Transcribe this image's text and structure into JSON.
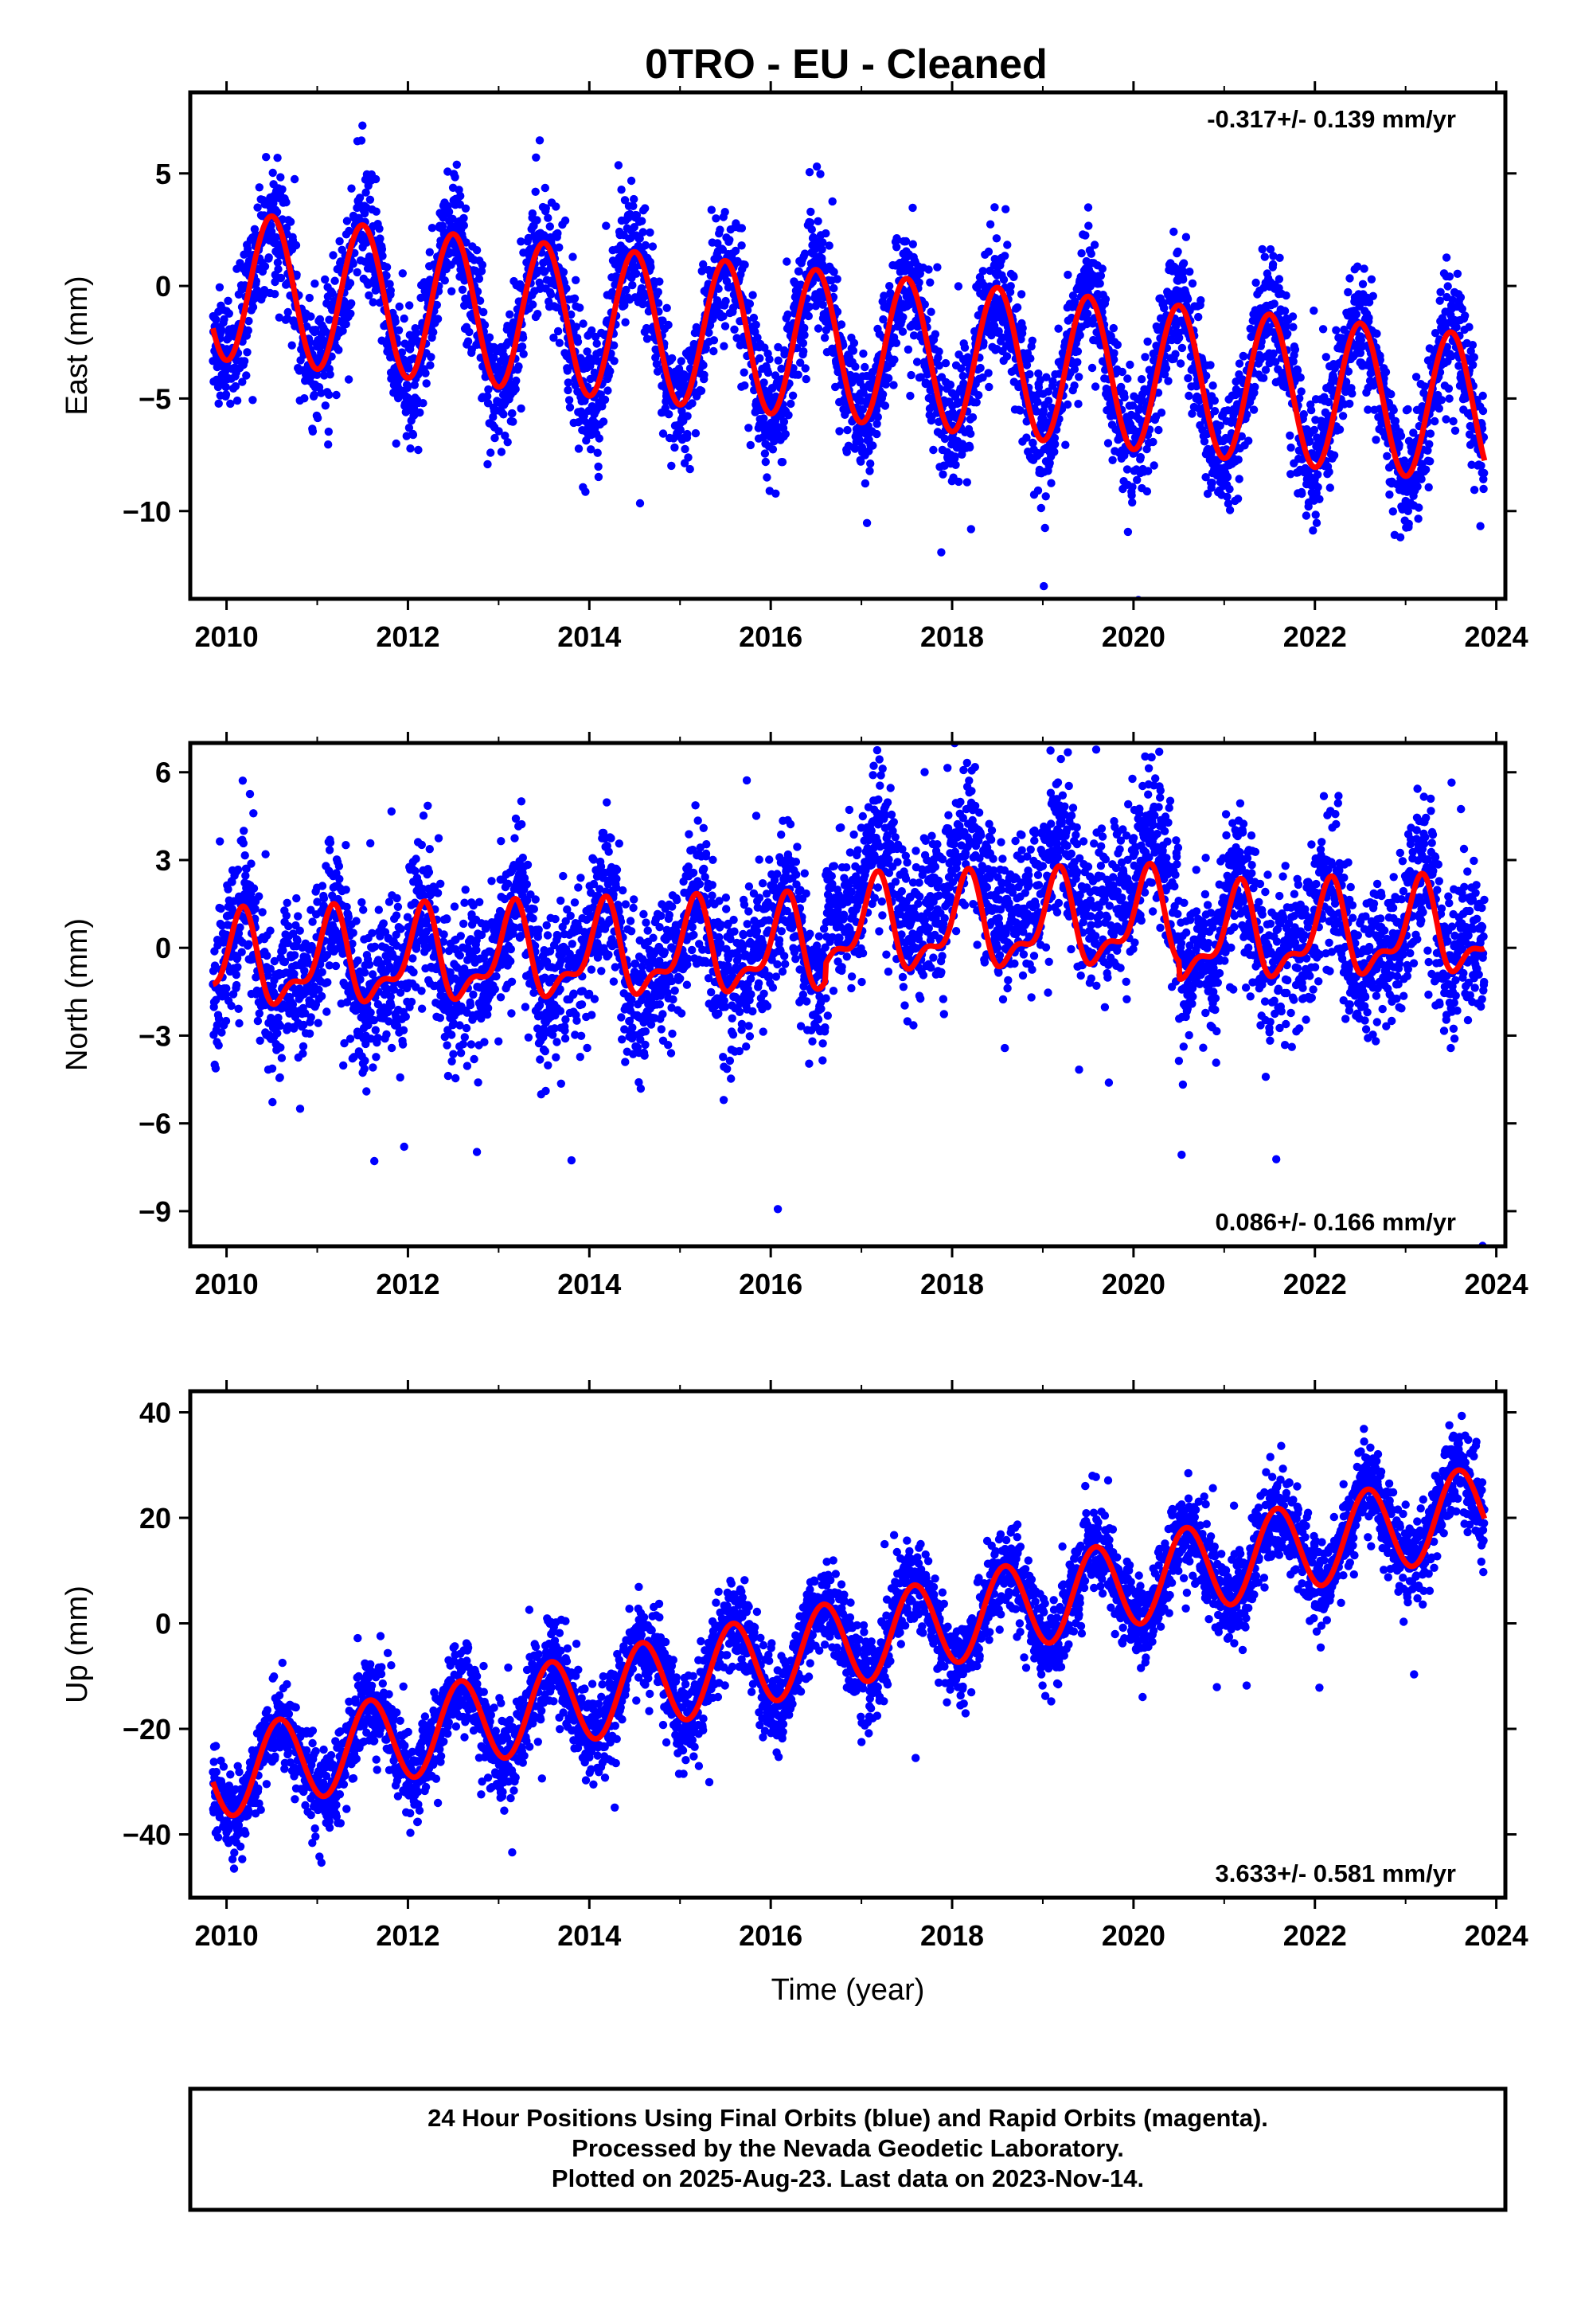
{
  "title": "0TRO  - EU - Cleaned",
  "colors": {
    "points": "#0000ff",
    "model": "#ff0000",
    "frame": "#000000",
    "background": "#ffffff"
  },
  "chart_data": [
    {
      "type": "scatter",
      "component": "east",
      "ylabel": "East (mm)",
      "xlabel": "",
      "xlim": [
        2009.6,
        2024.1
      ],
      "ylim": [
        -13.9,
        8.6
      ],
      "xticks": [
        2010,
        2012,
        2014,
        2016,
        2018,
        2020,
        2022,
        2024
      ],
      "yticks": [
        5,
        0,
        -5,
        -10
      ],
      "rate_label": "-0.317+/- 0.139 mm/yr",
      "rate_position": "top-right",
      "x_start": 2009.85,
      "x_end": 2023.87,
      "model": {
        "trend_at_2010": 0.0,
        "rate_mm_per_yr": -0.317,
        "annual_amp": 3.3,
        "annual_peak": 0.5,
        "semiannual_amp": 0.0,
        "semiannual_peak": 0.0,
        "end_trend_shift": -1.1
      },
      "scatter_sigma": 1.4,
      "series": [
        {
          "name": "Final Orbits",
          "marks": "points",
          "color": "blue"
        },
        {
          "name": "model",
          "marks": "line",
          "color": "red"
        }
      ]
    },
    {
      "type": "scatter",
      "component": "north",
      "ylabel": "North (mm)",
      "xlabel": "",
      "xlim": [
        2009.6,
        2024.1
      ],
      "ylim": [
        -10.2,
        7.0
      ],
      "xticks": [
        2010,
        2012,
        2014,
        2016,
        2018,
        2020,
        2022,
        2024
      ],
      "yticks": [
        6,
        3,
        0,
        -3,
        -6,
        -9
      ],
      "rate_label": "0.086+/- 0.166 mm/yr",
      "rate_position": "bottom-right",
      "x_start": 2009.85,
      "x_end": 2023.87,
      "model": {
        "trend_at_2010": -0.6,
        "rate_mm_per_yr": 0.086,
        "annual_amp": 1.4,
        "annual_peak": 0.15,
        "semiannual_amp": 0.65,
        "semiannual_peak": 0.2,
        "end_trend_shift": 0.0
      },
      "scatter_sigma": 1.3,
      "offset_segment": {
        "start": 2016.6,
        "end": 2020.5,
        "shift": 2.0
      },
      "series": [
        {
          "name": "Final Orbits",
          "marks": "points",
          "color": "blue"
        },
        {
          "name": "model",
          "marks": "line",
          "color": "red"
        }
      ]
    },
    {
      "type": "scatter",
      "component": "up",
      "ylabel": "Up (mm)",
      "xlabel": "Time (year)",
      "xlim": [
        2009.6,
        2024.1
      ],
      "ylim": [
        -52,
        44
      ],
      "xticks": [
        2010,
        2012,
        2014,
        2016,
        2018,
        2020,
        2022,
        2024
      ],
      "yticks": [
        40,
        20,
        0,
        -20,
        -40
      ],
      "rate_label": "3.633+/- 0.581 mm/yr",
      "rate_position": "bottom-right",
      "x_start": 2009.85,
      "x_end": 2023.87,
      "model": {
        "trend_at_2010": -28.5,
        "rate_mm_per_yr": 3.633,
        "annual_amp": 8.2,
        "annual_peak": 0.58,
        "semiannual_amp": 0.0,
        "semiannual_peak": 0.0,
        "end_trend_shift": 0.0
      },
      "scatter_sigma": 4.2,
      "series": [
        {
          "name": "Final Orbits",
          "marks": "points",
          "color": "blue"
        },
        {
          "name": "model",
          "marks": "line",
          "color": "red"
        }
      ]
    }
  ],
  "footer": {
    "line1": "24 Hour Positions Using Final Orbits (blue) and Rapid Orbits (magenta).",
    "line2": "Processed by the Nevada Geodetic Laboratory.",
    "line3": "Plotted on 2025-Aug-23. Last data on 2023-Nov-14."
  }
}
